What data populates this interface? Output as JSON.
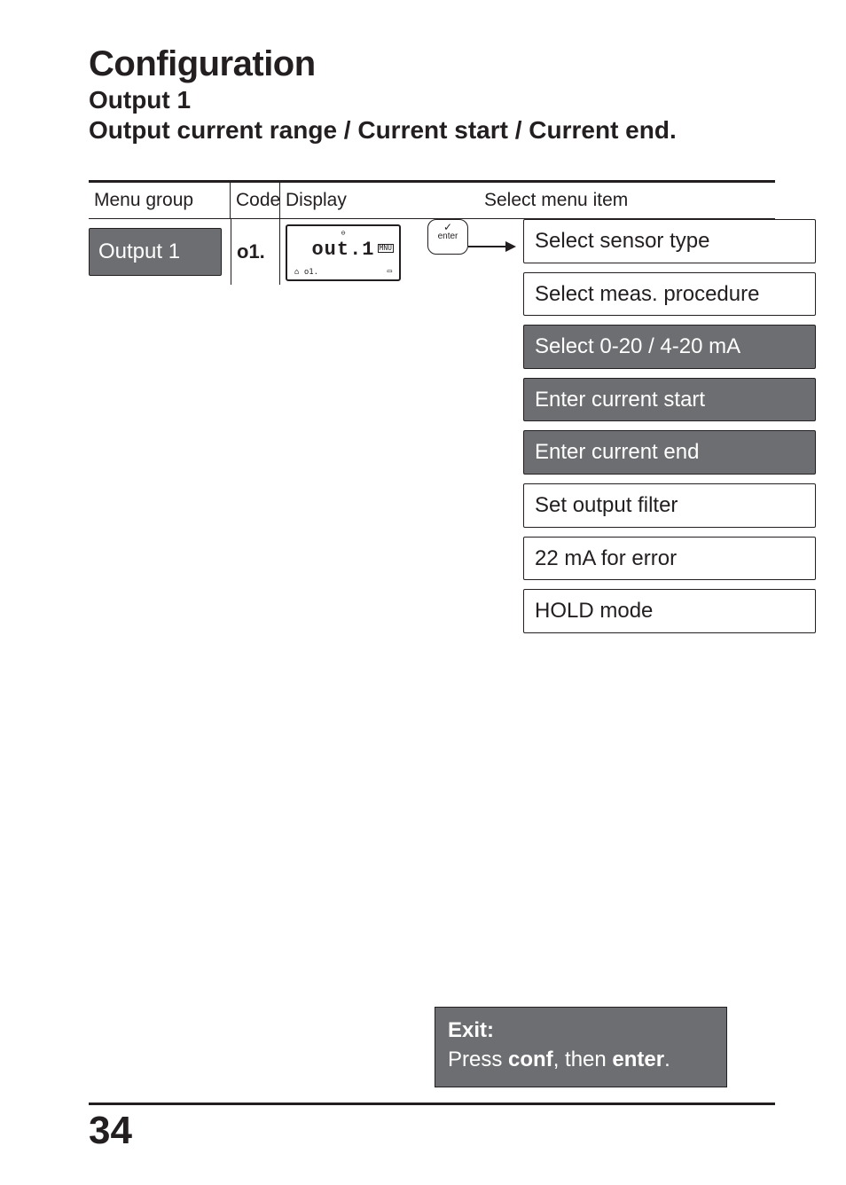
{
  "title": "Configuration",
  "subtitle1": "Output 1",
  "subtitle2": "Output current range / Current start / Current end.",
  "table_headers": {
    "menu_group": "Menu group",
    "code": "Code",
    "display": "Display",
    "select": "Select menu item"
  },
  "row": {
    "menu_group_label": "Output 1",
    "code": "o1.",
    "lcd": {
      "main": "out.1",
      "mnu": "MNU",
      "top_icon": "⊖",
      "bottom_left": "⌂  o1.",
      "bottom_right": "▭"
    },
    "enter_key": {
      "check": "✓",
      "label": "enter"
    }
  },
  "menu_items": [
    {
      "label": "Select sensor type",
      "dark": false
    },
    {
      "label": "Select meas. procedure",
      "dark": false
    },
    {
      "label": "Select 0-20 / 4-20 mA",
      "dark": true
    },
    {
      "label": "Enter current start",
      "dark": true
    },
    {
      "label": "Enter current end",
      "dark": true
    },
    {
      "label": "Set output filter",
      "dark": false
    },
    {
      "label": "22 mA for error",
      "dark": false
    },
    {
      "label": "HOLD mode",
      "dark": false
    }
  ],
  "exit": {
    "title": "Exit:",
    "line_prefix": "Press ",
    "conf": "conf",
    "middle": ", then ",
    "enter": "enter",
    "suffix": "."
  },
  "page_number": "34",
  "colors": {
    "dark_box_bg": "#6d6e71",
    "dark_box_text": "#ffffff",
    "text": "#231f20",
    "bg": "#ffffff"
  }
}
